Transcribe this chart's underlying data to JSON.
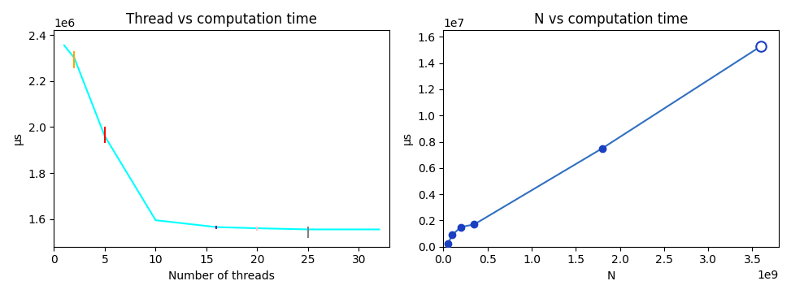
{
  "left_title": "Thread vs computation time",
  "left_xlabel": "Number of threads",
  "left_ylabel": "μs",
  "left_x": [
    1,
    2,
    5,
    10,
    16,
    20,
    25,
    32
  ],
  "left_y": [
    2355000,
    2300000,
    1960000,
    1595000,
    1565000,
    1560000,
    1555000,
    1555000
  ],
  "left_line_color": "cyan",
  "left_errorbars": [
    {
      "x": 2,
      "yerr_low": 2260000,
      "yerr_high": 2325000,
      "color": "orange"
    },
    {
      "x": 5,
      "yerr_low": 1935000,
      "yerr_high": 1998000,
      "color": "red"
    },
    {
      "x": 16,
      "yerr_low": 1560000,
      "yerr_high": 1568000,
      "color": "purple"
    },
    {
      "x": 20,
      "yerr_low": 1553000,
      "yerr_high": 1563000,
      "color": "pink"
    },
    {
      "x": 25,
      "yerr_low": 1520000,
      "yerr_high": 1565000,
      "color": "gray"
    }
  ],
  "left_ylim": [
    1480000,
    2420000
  ],
  "left_xlim": [
    0,
    33
  ],
  "right_title": "N vs computation time",
  "right_xlabel": "N",
  "right_ylabel": "μs",
  "right_x": [
    50000000,
    100000000,
    200000000,
    350000000,
    1800000000,
    3600000000
  ],
  "right_y": [
    200000,
    900000,
    1500000,
    1700000,
    7500000,
    15300000
  ],
  "right_line_color": "#3070c0",
  "right_marker_color": "#1a3fc0",
  "right_xlim": [
    0,
    3800000000.0
  ],
  "right_ylim": [
    0,
    16500000.0
  ]
}
